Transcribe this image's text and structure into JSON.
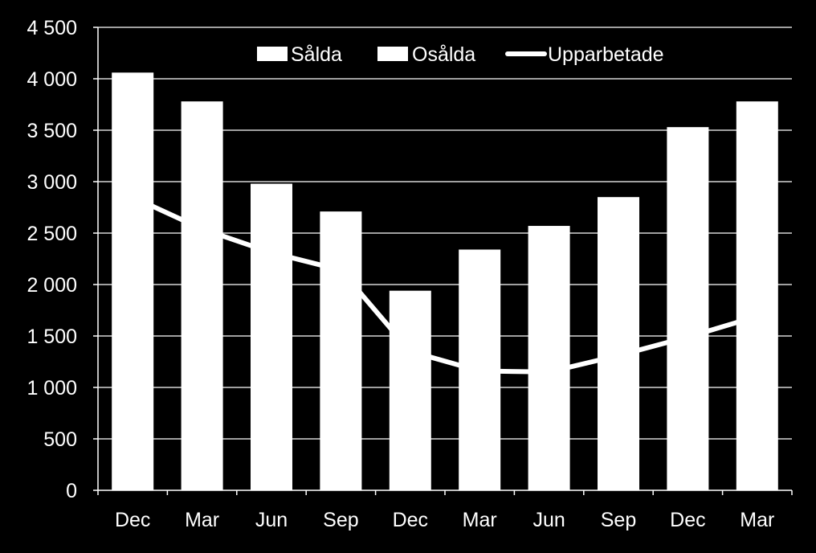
{
  "colors": {
    "background": "#000000",
    "foreground": "#ffffff",
    "gridline": "#ffffff"
  },
  "chart_data": {
    "type": "bar",
    "categories": [
      "Dec",
      "Mar",
      "Jun",
      "Sep",
      "Dec",
      "Mar",
      "Jun",
      "Sep",
      "Dec",
      "Mar"
    ],
    "series": [
      {
        "name": "Sålda",
        "type": "bar",
        "stacked_base": true,
        "values": [
          4060,
          3780,
          2980,
          2710,
          1940,
          2340,
          2570,
          2850,
          3530,
          3780
        ]
      },
      {
        "name": "Osålda",
        "type": "bar",
        "stacked_on": "Sålda",
        "values": [
          0,
          0,
          0,
          0,
          0,
          0,
          0,
          0,
          0,
          0
        ]
      },
      {
        "name": "Upparbetade",
        "type": "line",
        "values": [
          2850,
          2540,
          2310,
          2140,
          1350,
          1160,
          1150,
          1310,
          1490,
          1690
        ]
      }
    ],
    "ylim": [
      0,
      4500
    ],
    "yticks": [
      0,
      500,
      1000,
      1500,
      2000,
      2500,
      3000,
      3500,
      4000,
      4500
    ],
    "ytick_labels": [
      "0",
      "500",
      "1 000",
      "1 500",
      "2 000",
      "2 500",
      "3 000",
      "3 500",
      "4 000",
      "4 500"
    ],
    "grid": true,
    "legend_position": "top-right",
    "title": "",
    "xlabel": "",
    "ylabel": ""
  }
}
